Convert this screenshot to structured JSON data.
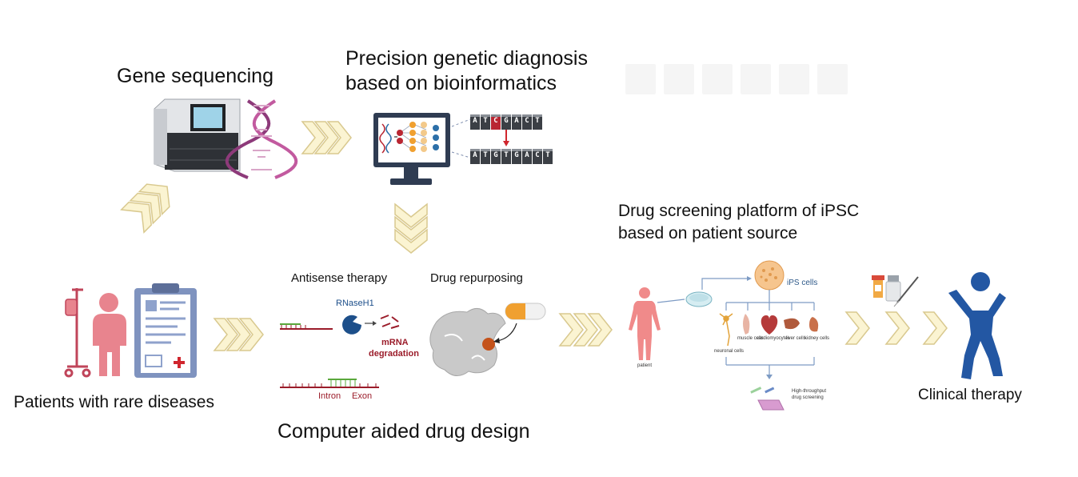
{
  "labels": {
    "gene_sequencing": "Gene sequencing",
    "precision_diagnosis_line1": "Precision genetic diagnosis",
    "precision_diagnosis_line2": "based on bioinformatics",
    "drug_screening_line1": "Drug screening platform of iPSC",
    "drug_screening_line2": "based on patient source",
    "patients": "Patients with rare diseases",
    "antisense_therapy": "Antisense therapy",
    "drug_repurposing": "Drug repurposing",
    "computer_aided": "Computer aided drug design",
    "clinical_therapy": "Clinical therapy"
  },
  "antisense": {
    "enzyme": "RNaseH1",
    "mrna_line1": "mRNA",
    "mrna_line2": "degradation",
    "intron": "Intron",
    "exon": "Exon"
  },
  "ipsc": {
    "ips_cells": "iPS cells",
    "patient": "patient",
    "neuronal": "neuronal cells",
    "muscle": "muscle cells",
    "cardio": "cardiomyocytes",
    "liver": "liver cells",
    "kidney": "kidney cells",
    "hts_line1": "High-throughput",
    "hts_line2": "drug screening"
  },
  "dna_sequence": {
    "top": [
      "A",
      "T",
      "C",
      "G",
      "A",
      "C",
      "T"
    ],
    "bottom": [
      "A",
      "T",
      "G",
      "T",
      "G",
      "A",
      "C",
      "T"
    ]
  },
  "colors": {
    "chevron_fill": "#fbf4d2",
    "chevron_stroke": "#d9c98f",
    "patient_pink": "#e8848e",
    "clipboard_blue": "#7f93bf",
    "figure_blue": "#2357a3",
    "dna_purple": "#8d3a7a",
    "mutation_red": "#b92632"
  },
  "icons": [
    "sequencer-icon",
    "dna-helix-icon",
    "computer-monitor-icon",
    "iv-stand-icon",
    "patient-icon",
    "clipboard-icon",
    "rnase-icon",
    "protein-pocket-icon",
    "capsule-icon",
    "human-body-icon",
    "petri-dish-icon",
    "ips-cell-icon",
    "medicine-icon",
    "celebrating-person-icon"
  ]
}
